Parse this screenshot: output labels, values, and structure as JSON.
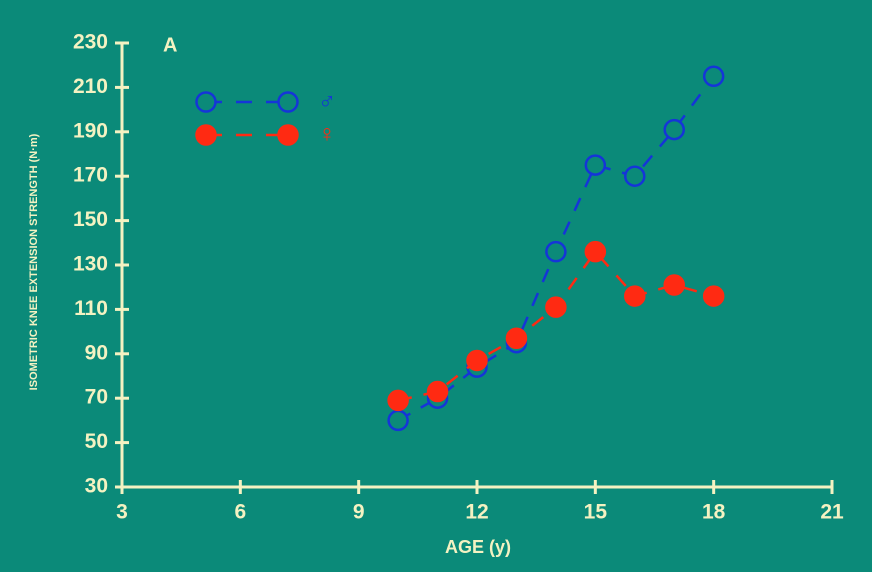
{
  "chart_data": {
    "type": "line",
    "annotation": "A",
    "x_label": "AGE (y)",
    "y_label": "ISOMETRIC KNEE EXTENSION STRENGTH (N·m)",
    "x": [
      10,
      11,
      12,
      13,
      14,
      15,
      16,
      17,
      18
    ],
    "series": [
      {
        "name": "♂",
        "color": "#1535d8",
        "filled": false,
        "values": [
          60,
          70,
          84,
          95,
          136,
          175,
          170,
          191,
          215
        ]
      },
      {
        "name": "♀",
        "color": "#ff2a12",
        "filled": true,
        "values": [
          69,
          73,
          87,
          97,
          111,
          136,
          116,
          121,
          116
        ]
      }
    ],
    "xlim": [
      3,
      21
    ],
    "xticks": [
      3,
      6,
      9,
      12,
      15,
      18,
      21
    ],
    "ylim": [
      30,
      230
    ],
    "yticks": [
      30,
      50,
      70,
      90,
      110,
      130,
      150,
      170,
      190,
      210,
      230
    ],
    "axis_color": "#f4f2c2",
    "background": "#0b8a79"
  }
}
